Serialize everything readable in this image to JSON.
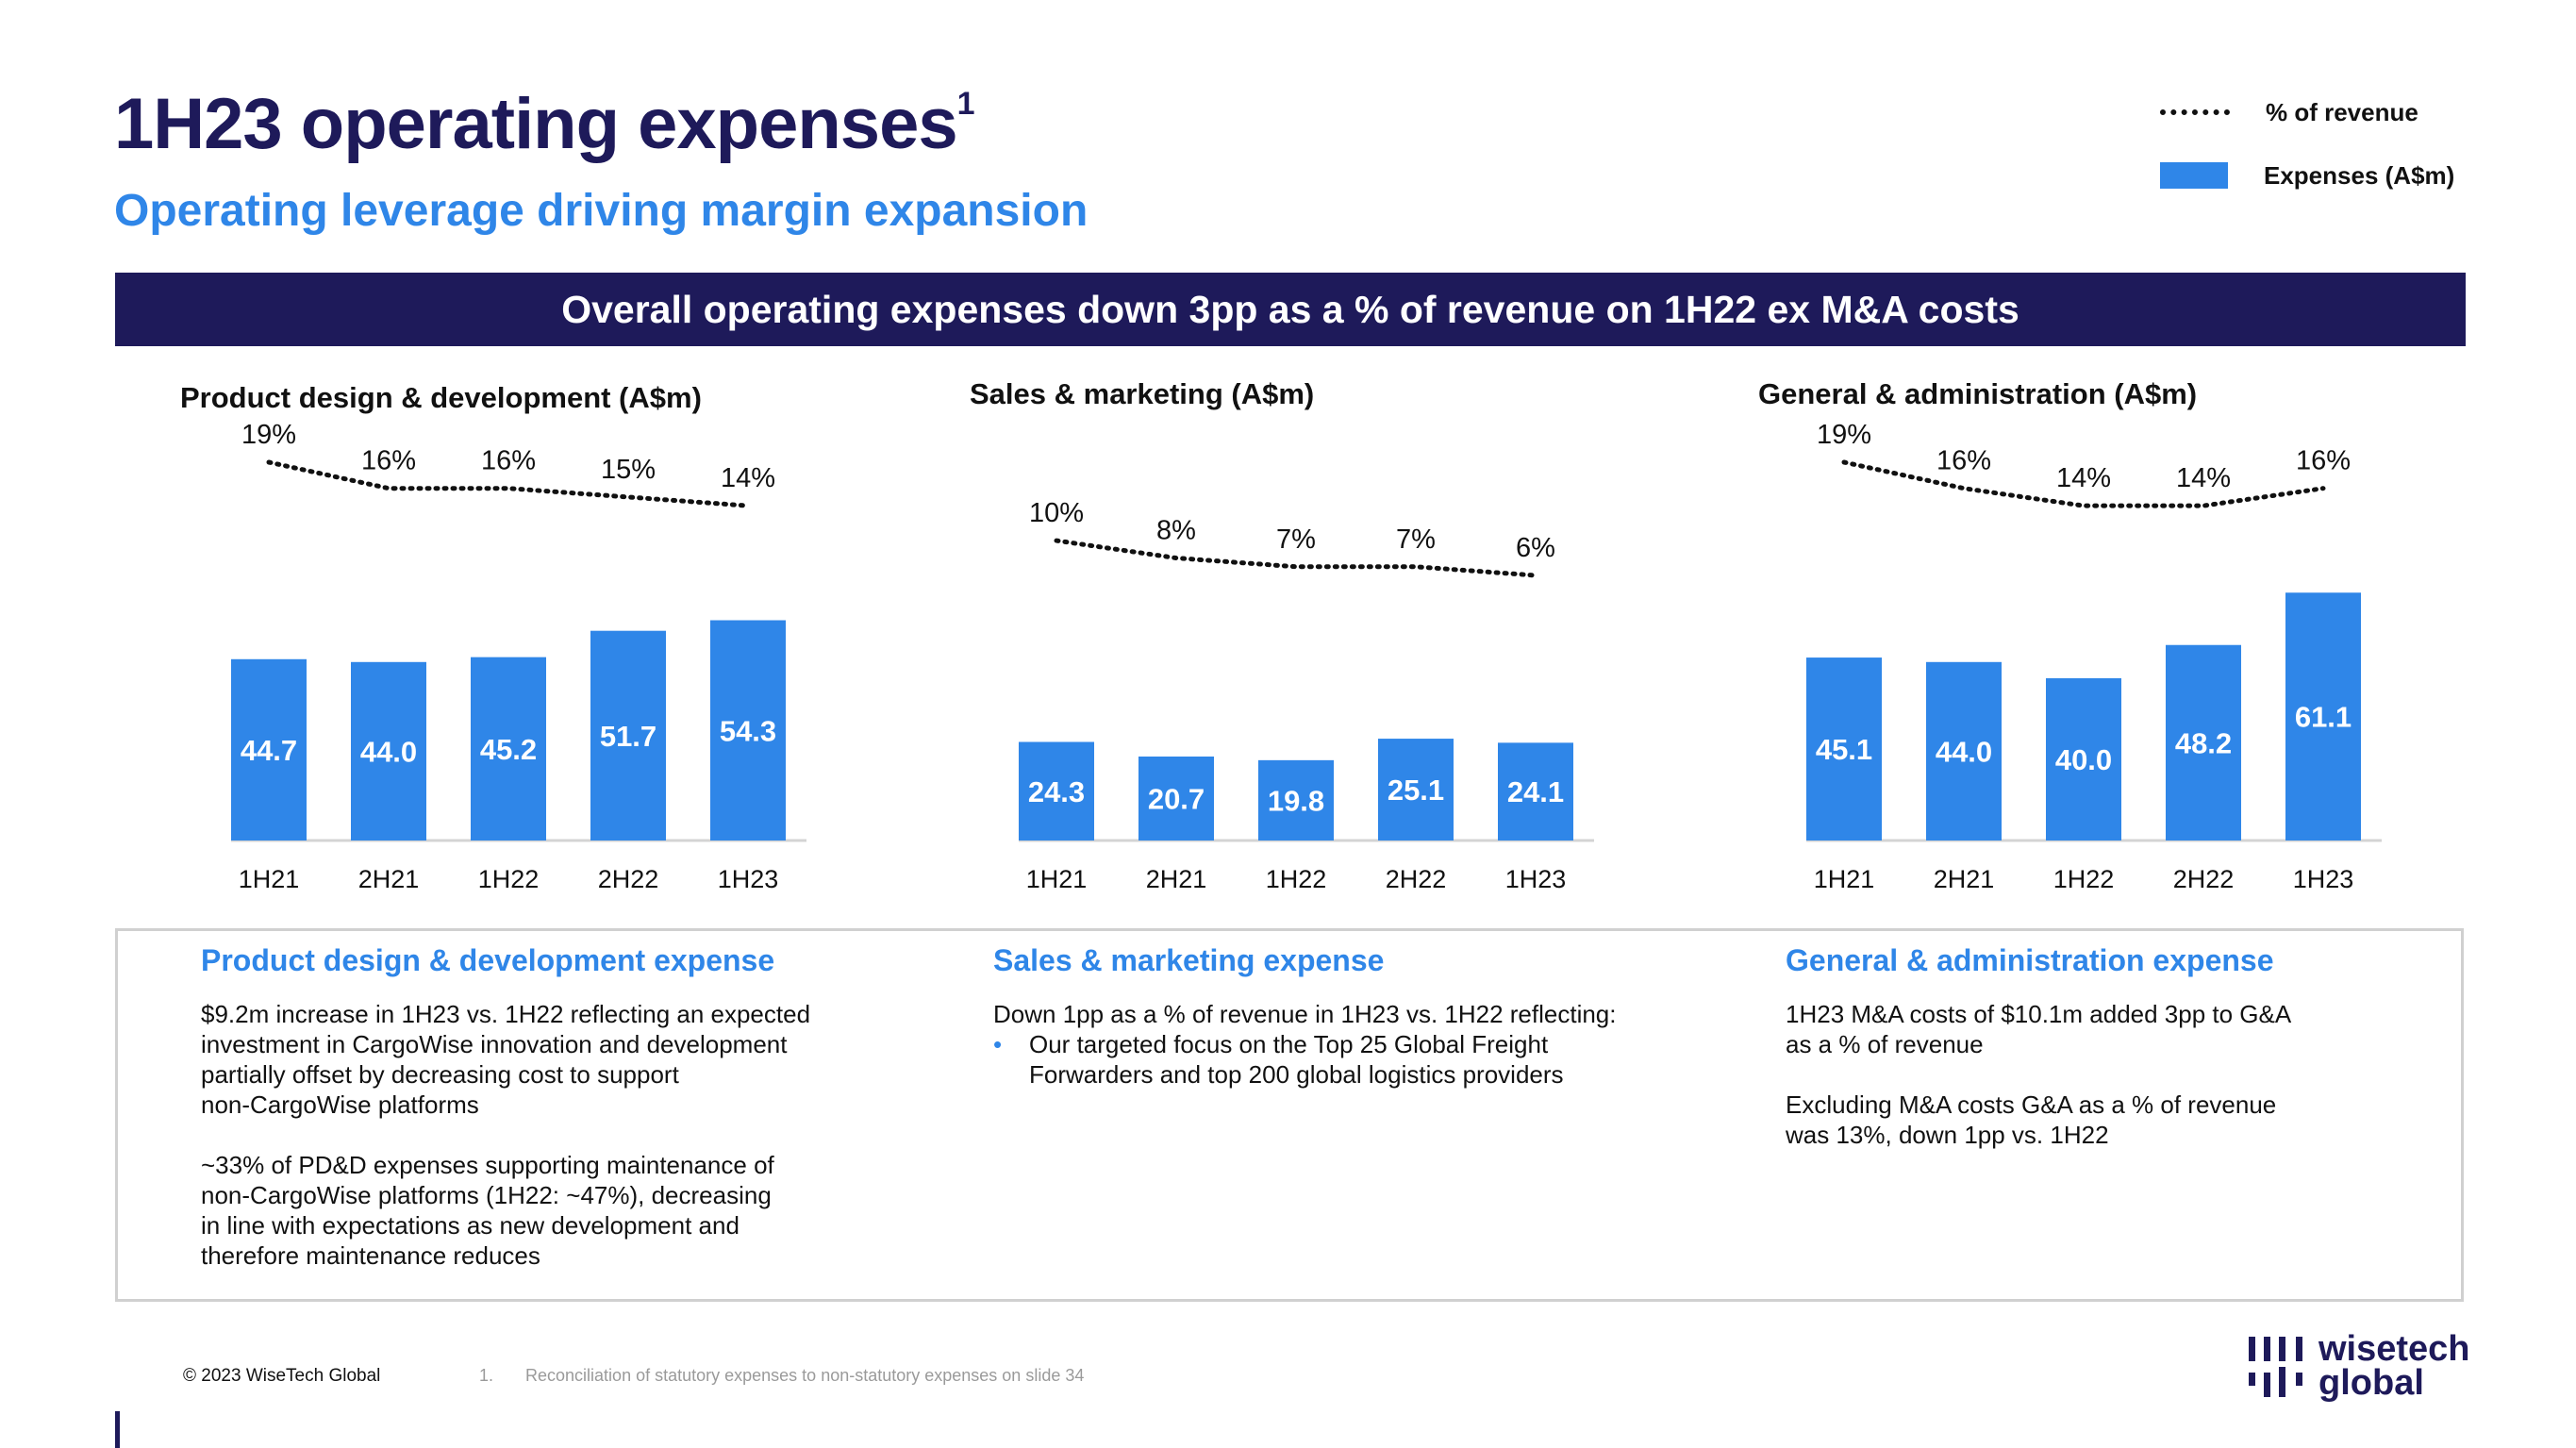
{
  "header": {
    "title": "1H23 operating expenses",
    "title_superscript": "1",
    "subtitle": "Operating leverage driving margin expansion"
  },
  "legend": {
    "line_label": "% of revenue",
    "bar_label": "Expenses (A$m)"
  },
  "banner": "Overall operating expenses down 3pp as a % of revenue on 1H22 ex M&A costs",
  "colors": {
    "navy": "#1e1a5a",
    "blue": "#2f86e8"
  },
  "chart_data": [
    {
      "type": "bar",
      "title": "Product design & development (A$m)",
      "categories": [
        "1H21",
        "2H21",
        "1H22",
        "2H22",
        "1H23"
      ],
      "values": [
        44.7,
        44.0,
        45.2,
        51.7,
        54.3
      ],
      "value_labels": [
        "44.7",
        "44.0",
        "45.2",
        "51.7",
        "54.3"
      ],
      "line_series": {
        "name": "% of revenue",
        "values": [
          19,
          16,
          16,
          15,
          14
        ],
        "labels": [
          "19%",
          "16%",
          "16%",
          "15%",
          "14%"
        ],
        "style": "dotted"
      }
    },
    {
      "type": "bar",
      "title": "Sales & marketing (A$m)",
      "categories": [
        "1H21",
        "2H21",
        "1H22",
        "2H22",
        "1H23"
      ],
      "values": [
        24.3,
        20.7,
        19.8,
        25.1,
        24.1
      ],
      "value_labels": [
        "24.3",
        "20.7",
        "19.8",
        "25.1",
        "24.1"
      ],
      "line_series": {
        "name": "% of revenue",
        "values": [
          10,
          8,
          7,
          7,
          6
        ],
        "labels": [
          "10%",
          "8%",
          "7%",
          "7%",
          "6%"
        ],
        "style": "dotted"
      }
    },
    {
      "type": "bar",
      "title": "General & administration (A$m)",
      "categories": [
        "1H21",
        "2H21",
        "1H22",
        "2H22",
        "1H23"
      ],
      "values": [
        45.1,
        44.0,
        40.0,
        48.2,
        61.1
      ],
      "value_labels": [
        "45.1",
        "44.0",
        "40.0",
        "48.2",
        "61.1"
      ],
      "line_series": {
        "name": "% of revenue",
        "values": [
          19,
          16,
          14,
          14,
          16
        ],
        "labels": [
          "19%",
          "16%",
          "14%",
          "14%",
          "16%"
        ],
        "style": "dotted"
      }
    }
  ],
  "descriptions": {
    "pdd": {
      "title": "Product design & development expense",
      "p1": "$9.2m increase in 1H23 vs. 1H22 reflecting an expected\ninvestment in CargoWise innovation and development\npartially offset by decreasing cost to support\nnon-CargoWise platforms",
      "p2": "~33% of PD&D expenses supporting maintenance of\nnon-CargoWise platforms (1H22: ~47%), decreasing\nin line with expectations as new development and\ntherefore maintenance reduces"
    },
    "sm": {
      "title": "Sales & marketing expense",
      "p1": "Down 1pp as a % of revenue in 1H23 vs. 1H22 reflecting:",
      "bullet_symbol": "•",
      "bullet1": "Our targeted focus on the Top 25 Global Freight\nForwarders and top 200 global logistics providers"
    },
    "ga": {
      "title": "General & administration expense",
      "p1": "1H23 M&A costs of $10.1m added 3pp to G&A\nas a % of revenue",
      "p2": "Excluding M&A costs G&A as a % of revenue\nwas 13%, down 1pp vs. 1H22"
    }
  },
  "footer": {
    "copyright": "© 2023 WiseTech Global",
    "footnote_number": "1.",
    "footnote_text": "Reconciliation of statutory expenses to non-statutory expenses on slide 34",
    "logo_text": "wisetech\nglobal"
  }
}
